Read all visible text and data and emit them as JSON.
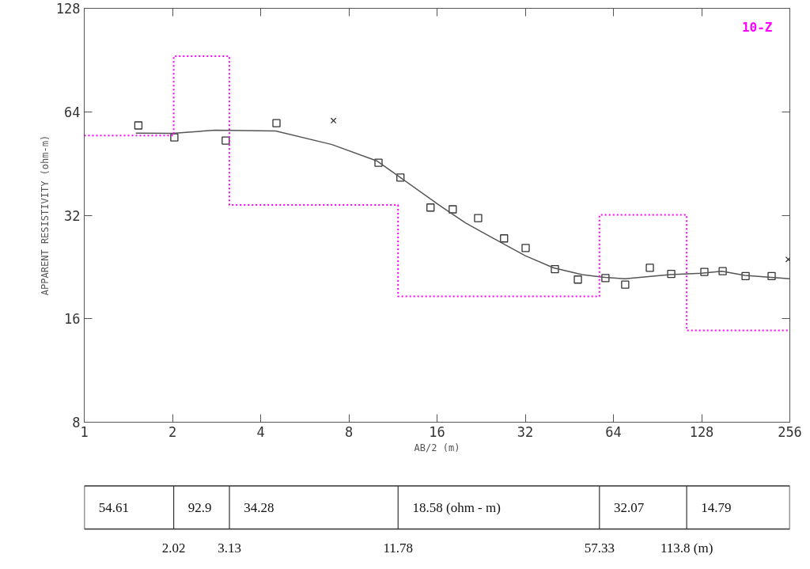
{
  "chart_data": {
    "type": "scatter",
    "title": "10-Z",
    "xlabel": "AB/2 (m)",
    "ylabel": "APPARENT RESISTIVITY (ohm-m)",
    "log": "xy",
    "xlim": [
      1,
      256
    ],
    "ylim": [
      8,
      128
    ],
    "xticks": [
      1,
      2,
      4,
      8,
      16,
      32,
      64,
      128,
      256
    ],
    "yticks": [
      8,
      16,
      32,
      64,
      128
    ],
    "grid": false,
    "series": [
      {
        "marker": "square",
        "color": "#333333",
        "x": [
          1.53,
          2.03,
          3.04,
          4.53,
          10.1,
          12.0,
          15.2,
          18.1,
          22.1,
          27.1,
          32.1,
          40.4,
          48.4,
          60.1,
          70.2,
          85.2,
          100.8,
          130.8,
          151,
          180.8,
          221.9
        ],
        "values": [
          58.4,
          53.9,
          52.8,
          59.3,
          45.5,
          41.2,
          33.7,
          33.3,
          31.4,
          27.4,
          25.7,
          22.3,
          20.8,
          21.0,
          20.1,
          22.5,
          21.6,
          21.9,
          22.0,
          21.3,
          21.3
        ]
      },
      {
        "type": "scatter",
        "marker": "cross",
        "color": "#333333",
        "x": [
          7.09,
          253
        ],
        "values": [
          60.3,
          23.8
        ]
      },
      {
        "type": "line",
        "line_style": "solid",
        "color": "#555555",
        "x": [
          1.5,
          2,
          2.8,
          4.5,
          7,
          10,
          12,
          16,
          20,
          24,
          32,
          40,
          50,
          60,
          70,
          100,
          128,
          150,
          180,
          256
        ],
        "values": [
          55.5,
          55.4,
          56.6,
          56.3,
          51.4,
          46.0,
          41.2,
          34.6,
          30.4,
          27.9,
          24.4,
          22.5,
          21.5,
          21.1,
          20.9,
          21.5,
          21.7,
          22.0,
          21.4,
          20.9
        ]
      },
      {
        "type": "step",
        "line_style": "dotted",
        "color": "#ff00ff",
        "x": [
          1,
          2.02,
          3.13,
          11.78,
          57.33,
          113.8,
          256
        ],
        "values": [
          54.61,
          92.9,
          34.28,
          18.58,
          32.07,
          14.79,
          14.79
        ]
      }
    ],
    "annotations": [
      "54.61",
      "92.9",
      "34.28",
      "18.58 (ohm - m)",
      "32.07",
      "14.79",
      "2.02",
      "3.13",
      "11.78",
      "57.33",
      "113.8 (m)"
    ]
  }
}
